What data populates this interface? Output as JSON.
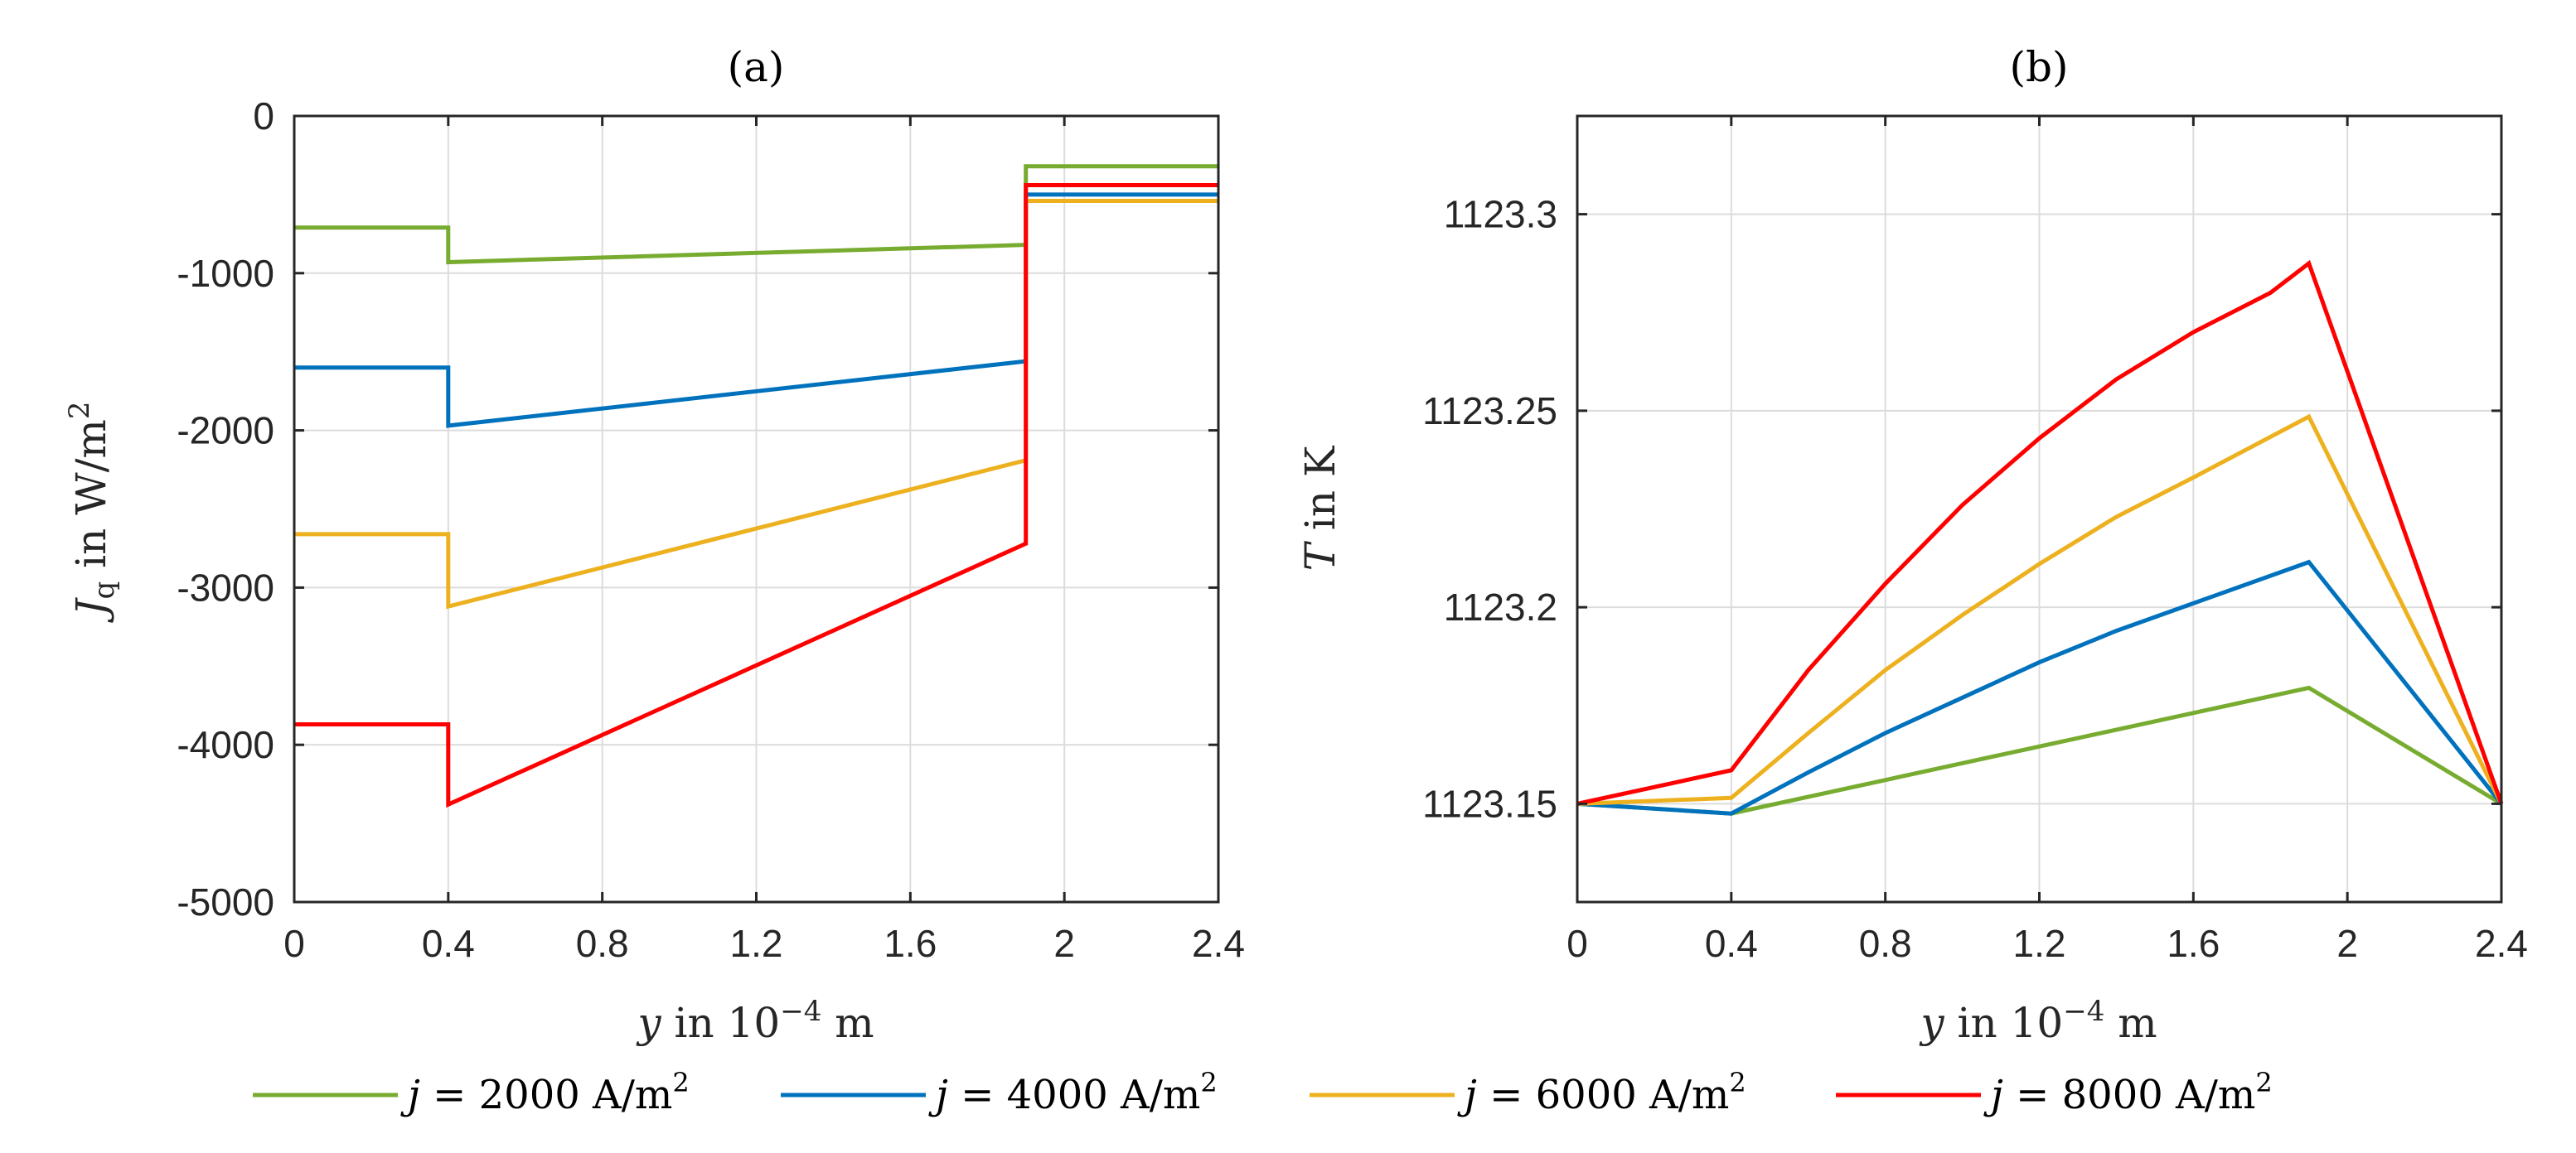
{
  "chart_data": [
    {
      "type": "line",
      "panel": "a",
      "title": "(a)",
      "xlabel": {
        "var": "y",
        "text": " in 10",
        "exp": "−4",
        "unit": " m"
      },
      "ylabel": {
        "var": "J",
        "sub": "q",
        "text": " in W/m",
        "exp": "2"
      },
      "xlim": [
        0,
        2.4
      ],
      "ylim": [
        -5000,
        0
      ],
      "xticks": [
        0,
        0.4,
        0.8,
        1.2,
        1.6,
        2,
        2.4
      ],
      "xtick_labels": [
        "0",
        "0.4",
        "0.8",
        "1.2",
        "1.6",
        "2",
        "2.4"
      ],
      "yticks": [
        0,
        -1000,
        -2000,
        -3000,
        -4000,
        -5000
      ],
      "ytick_labels": [
        "0",
        "-1000",
        "-2000",
        "-3000",
        "-4000",
        "-5000"
      ],
      "grid": true,
      "series": [
        {
          "name": "j = 2000 A/m2",
          "color": "#77ac30",
          "x": [
            0,
            0.4,
            0.4,
            1.9,
            1.9,
            2.4
          ],
          "y": [
            -710,
            -710,
            -930,
            -820,
            -320,
            -320
          ]
        },
        {
          "name": "j = 4000 A/m2",
          "color": "#0072bd",
          "x": [
            0,
            0.4,
            0.4,
            1.9,
            1.9,
            2.4
          ],
          "y": [
            -1600,
            -1600,
            -1970,
            -1560,
            -500,
            -500
          ]
        },
        {
          "name": "j = 6000 A/m2",
          "color": "#edb120",
          "x": [
            0,
            0.4,
            0.4,
            1.9,
            1.9,
            2.4
          ],
          "y": [
            -2660,
            -2660,
            -3120,
            -2190,
            -540,
            -540
          ]
        },
        {
          "name": "j = 8000 A/m2",
          "color": "#ff0000",
          "x": [
            0,
            0.4,
            0.4,
            1.9,
            1.9,
            2.4
          ],
          "y": [
            -3870,
            -3870,
            -4380,
            -2720,
            -440,
            -440
          ]
        }
      ]
    },
    {
      "type": "line",
      "panel": "b",
      "title": "(b)",
      "xlabel": {
        "var": "y",
        "text": " in 10",
        "exp": "−4",
        "unit": " m"
      },
      "ylabel": {
        "var": "T",
        "text": " in K"
      },
      "xlim": [
        0,
        2.4
      ],
      "ylim": [
        1123.125,
        1123.325
      ],
      "xticks": [
        0,
        0.4,
        0.8,
        1.2,
        1.6,
        2,
        2.4
      ],
      "xtick_labels": [
        "0",
        "0.4",
        "0.8",
        "1.2",
        "1.6",
        "2",
        "2.4"
      ],
      "yticks": [
        1123.15,
        1123.2,
        1123.25,
        1123.3
      ],
      "ytick_labels": [
        "1123.15",
        "1123.2",
        "1123.25",
        "1123.3"
      ],
      "grid": true,
      "series": [
        {
          "name": "j = 2000 A/m2",
          "color": "#77ac30",
          "x": [
            0,
            0.4,
            1.9,
            2.4
          ],
          "y": [
            1123.15,
            1123.1475,
            1123.1795,
            1123.15
          ]
        },
        {
          "name": "j = 4000 A/m2",
          "color": "#0072bd",
          "x": [
            0,
            0.4,
            0.6,
            0.8,
            1.0,
            1.2,
            1.4,
            1.6,
            1.9,
            2.4
          ],
          "y": [
            1123.15,
            1123.1475,
            1123.158,
            1123.168,
            1123.177,
            1123.186,
            1123.194,
            1123.201,
            1123.2115,
            1123.15
          ]
        },
        {
          "name": "j = 6000 A/m2",
          "color": "#edb120",
          "x": [
            0,
            0.4,
            0.6,
            0.8,
            1.0,
            1.2,
            1.4,
            1.6,
            1.9,
            2.4
          ],
          "y": [
            1123.15,
            1123.1515,
            1123.168,
            1123.184,
            1123.198,
            1123.211,
            1123.223,
            1123.233,
            1123.2485,
            1123.15
          ]
        },
        {
          "name": "j = 8000 A/m2",
          "color": "#ff0000",
          "x": [
            0,
            0.4,
            0.6,
            0.8,
            1.0,
            1.2,
            1.4,
            1.6,
            1.8,
            1.9,
            2.4
          ],
          "y": [
            1123.15,
            1123.1585,
            1123.184,
            1123.206,
            1123.226,
            1123.243,
            1123.258,
            1123.27,
            1123.28,
            1123.2875,
            1123.15
          ]
        }
      ]
    }
  ],
  "legend": {
    "position": "bottom",
    "entries": [
      {
        "var": "j",
        "eq": " = 2000 A/m",
        "exp": "2",
        "color": "#77ac30"
      },
      {
        "var": "j",
        "eq": " = 4000 A/m",
        "exp": "2",
        "color": "#0072bd"
      },
      {
        "var": "j",
        "eq": " = 6000 A/m",
        "exp": "2",
        "color": "#edb120"
      },
      {
        "var": "j",
        "eq": " = 8000 A/m",
        "exp": "2",
        "color": "#ff0000"
      }
    ]
  }
}
